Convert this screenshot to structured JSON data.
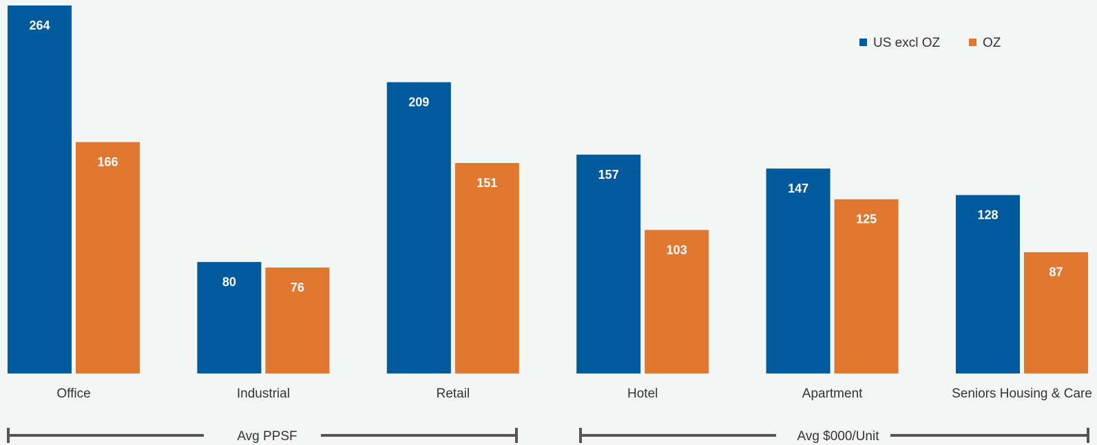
{
  "chart_data": {
    "type": "bar",
    "categories": [
      "Office",
      "Industrial",
      "Retail",
      "Hotel",
      "Apartment",
      "Seniors Housing & Care"
    ],
    "series": [
      {
        "name": "US excl OZ",
        "color": "#005a9c",
        "values": [
          264,
          80,
          209,
          157,
          147,
          128
        ]
      },
      {
        "name": "OZ",
        "color": "#e07832",
        "values": [
          166,
          76,
          151,
          103,
          125,
          87
        ]
      }
    ],
    "ylim": [
      0,
      264
    ],
    "grid": false,
    "legend_position": "top-right",
    "groups": [
      {
        "label": "Avg PPSF",
        "categories": [
          "Office",
          "Industrial",
          "Retail"
        ]
      },
      {
        "label": "Avg $000/Unit",
        "categories": [
          "Hotel",
          "Apartment",
          "Seniors Housing & Care"
        ]
      }
    ],
    "bracket_color": "#555555"
  }
}
